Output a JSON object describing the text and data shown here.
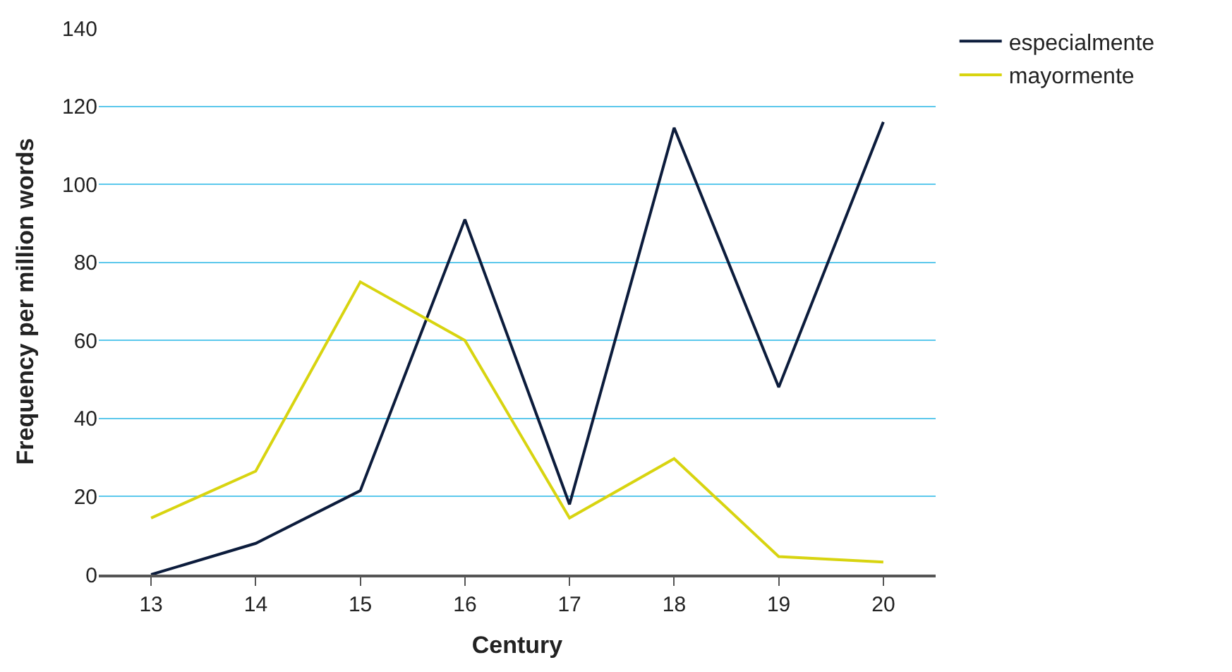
{
  "chart_data": {
    "type": "line",
    "xlabel": "Century",
    "ylabel": "Frequency per million words",
    "categories": [
      "13",
      "14",
      "15",
      "16",
      "17",
      "18",
      "19",
      "20"
    ],
    "series": [
      {
        "name": "especialmente",
        "color": "#0c1c3c",
        "values": [
          0,
          8,
          21.5,
          91,
          18,
          114.5,
          48,
          116
        ]
      },
      {
        "name": "mayormente",
        "color": "#d8d410",
        "values": [
          14.5,
          26.5,
          75,
          60,
          14.5,
          29.7,
          4.6,
          3.2
        ]
      }
    ],
    "ylim": [
      0,
      140
    ],
    "yticks": [
      0,
      20,
      40,
      60,
      80,
      100,
      120,
      140
    ],
    "grid": "y",
    "legend": "top right",
    "marker": "none",
    "line_style": "solid"
  }
}
